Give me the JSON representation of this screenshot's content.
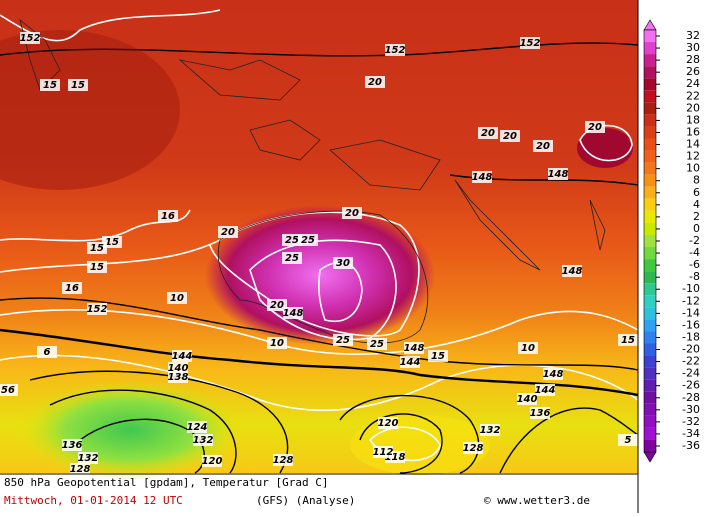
{
  "header": {
    "title": "850 hPa Geopotential [gpdam], Temperatur [Grad C]"
  },
  "footer": {
    "date": "Mittwoch, 01-01-2014  12 UTC",
    "model": "(GFS)   (Analyse)",
    "credit": "© www.wetter3.de"
  },
  "colorbar": {
    "ticks": [
      32,
      30,
      28,
      26,
      24,
      22,
      20,
      18,
      16,
      14,
      12,
      10,
      8,
      6,
      4,
      2,
      0,
      -2,
      -4,
      -6,
      -8,
      -10,
      -12,
      -14,
      -16,
      -18,
      -20,
      -22,
      -24,
      -26,
      -28,
      -30,
      -32,
      -34,
      -36
    ],
    "colors": [
      "#f070f0",
      "#e040d0",
      "#c82090",
      "#b01060",
      "#a00830",
      "#c01020",
      "#a82010",
      "#c83018",
      "#d84018",
      "#e85018",
      "#f06018",
      "#f07818",
      "#f89018",
      "#f8b018",
      "#f8d010",
      "#e8e800",
      "#c8e800",
      "#a0e040",
      "#70d840",
      "#40c840",
      "#30b850",
      "#30c890",
      "#30d0c0",
      "#30c0e0",
      "#30a0f0",
      "#3080f0",
      "#3060e0",
      "#4040d0",
      "#5030c0",
      "#6020b0",
      "#7010a0",
      "#8010b0",
      "#9010c0",
      "#a010d0",
      "#8000a0"
    ]
  },
  "contour_labels": [
    "152",
    "15",
    "15",
    "152",
    "152",
    "20",
    "20",
    "20",
    "20",
    "20",
    "148",
    "148",
    "16",
    "15",
    "15",
    "15",
    "20",
    "20",
    "25",
    "25",
    "25",
    "30",
    "148",
    "16",
    "152",
    "10",
    "20",
    "148",
    "10",
    "25",
    "25",
    "148",
    "144",
    "140",
    "138",
    "6",
    "144",
    "15",
    "148",
    "144",
    "140",
    "136",
    "124",
    "120",
    "132",
    "128",
    "120",
    "118",
    "112",
    "128",
    "132",
    "136",
    "132",
    "128",
    "56",
    "5",
    "15",
    "10"
  ]
}
